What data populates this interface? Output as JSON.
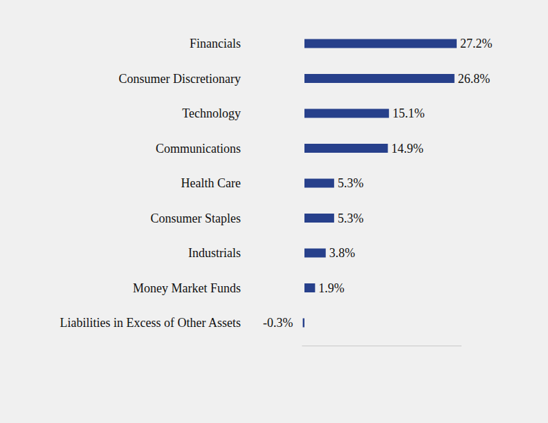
{
  "chart_data": {
    "type": "bar",
    "orientation": "horizontal",
    "categories": [
      "Financials",
      "Consumer Discretionary",
      "Technology",
      "Communications",
      "Health Care",
      "Consumer Staples",
      "Industrials",
      "Money Market Funds",
      "Liabilities in Excess of Other Assets"
    ],
    "values": [
      27.2,
      26.8,
      15.1,
      14.9,
      5.3,
      5.3,
      3.8,
      1.9,
      -0.3
    ],
    "value_labels": [
      "27.2%",
      "26.8%",
      "15.1%",
      "14.9%",
      "5.3%",
      "5.3%",
      "3.8%",
      "1.9%",
      "-0.3%"
    ],
    "color": "#27408b",
    "xlim": [
      -0.5,
      28
    ],
    "xticks": [],
    "tick_labels": false,
    "data_labels": true,
    "grid": false
  }
}
